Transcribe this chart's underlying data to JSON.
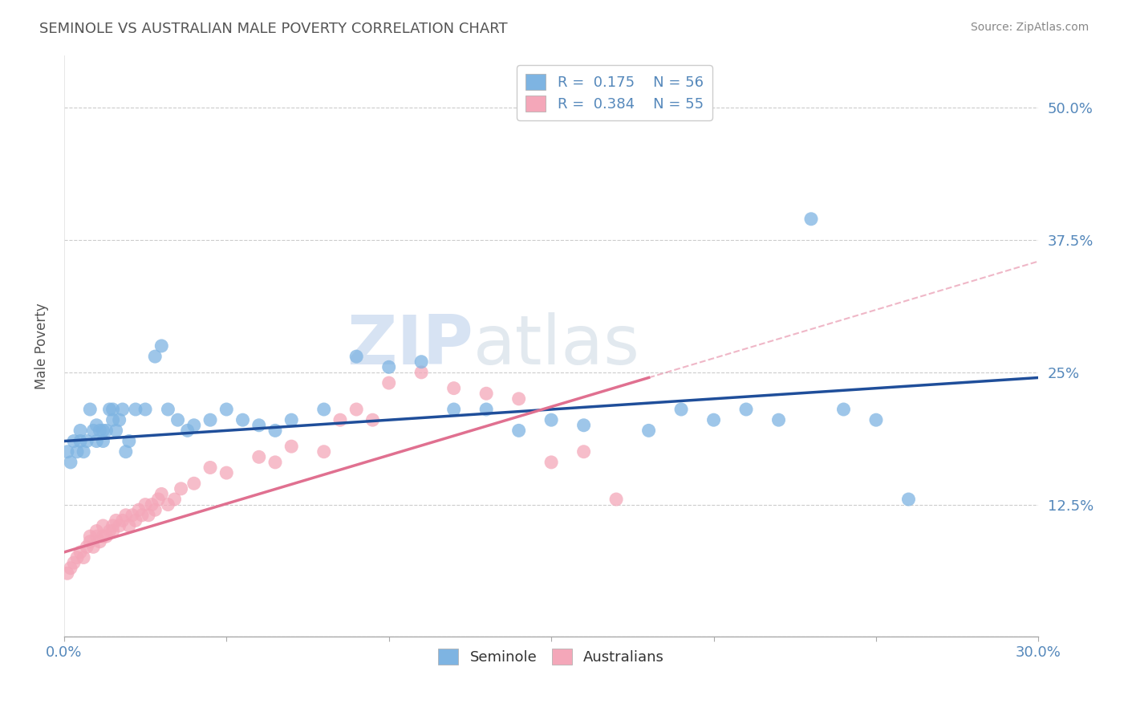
{
  "title": "SEMINOLE VS AUSTRALIAN MALE POVERTY CORRELATION CHART",
  "source": "Source: ZipAtlas.com",
  "ylabel": "Male Poverty",
  "xlim": [
    0.0,
    0.3
  ],
  "ylim": [
    0.0,
    0.55
  ],
  "yticks": [
    0.0,
    0.125,
    0.25,
    0.375,
    0.5
  ],
  "ytick_labels_right": [
    "",
    "12.5%",
    "25%",
    "37.5%",
    "50.0%"
  ],
  "xticks": [
    0.0,
    0.05,
    0.1,
    0.15,
    0.2,
    0.25,
    0.3
  ],
  "xtick_labels": [
    "0.0%",
    "",
    "",
    "",
    "",
    "",
    "30.0%"
  ],
  "seminole_color": "#7EB4E2",
  "australian_color": "#F4A7B9",
  "trend_blue": "#1F4E9A",
  "trend_pink": "#E07090",
  "watermark_zip": "ZIP",
  "watermark_atlas": "atlas",
  "background_color": "#FFFFFF",
  "grid_color": "#CCCCCC",
  "title_color": "#555555",
  "axis_label_color": "#555555",
  "tick_color": "#5588BB",
  "seminole_x": [
    0.001,
    0.002,
    0.003,
    0.004,
    0.005,
    0.005,
    0.006,
    0.007,
    0.008,
    0.009,
    0.01,
    0.01,
    0.011,
    0.012,
    0.012,
    0.013,
    0.014,
    0.015,
    0.015,
    0.016,
    0.017,
    0.018,
    0.019,
    0.02,
    0.022,
    0.025,
    0.028,
    0.03,
    0.032,
    0.035,
    0.038,
    0.04,
    0.045,
    0.05,
    0.055,
    0.06,
    0.065,
    0.07,
    0.08,
    0.09,
    0.1,
    0.11,
    0.12,
    0.13,
    0.14,
    0.15,
    0.16,
    0.18,
    0.19,
    0.2,
    0.21,
    0.22,
    0.23,
    0.24,
    0.25,
    0.26
  ],
  "seminole_y": [
    0.175,
    0.165,
    0.185,
    0.175,
    0.185,
    0.195,
    0.175,
    0.185,
    0.215,
    0.195,
    0.2,
    0.185,
    0.195,
    0.185,
    0.195,
    0.195,
    0.215,
    0.215,
    0.205,
    0.195,
    0.205,
    0.215,
    0.175,
    0.185,
    0.215,
    0.215,
    0.265,
    0.275,
    0.215,
    0.205,
    0.195,
    0.2,
    0.205,
    0.215,
    0.205,
    0.2,
    0.195,
    0.205,
    0.215,
    0.265,
    0.255,
    0.26,
    0.215,
    0.215,
    0.195,
    0.205,
    0.2,
    0.195,
    0.215,
    0.205,
    0.215,
    0.205,
    0.395,
    0.215,
    0.205,
    0.13
  ],
  "australian_x": [
    0.001,
    0.002,
    0.003,
    0.004,
    0.005,
    0.006,
    0.007,
    0.008,
    0.008,
    0.009,
    0.01,
    0.01,
    0.011,
    0.012,
    0.012,
    0.013,
    0.014,
    0.015,
    0.015,
    0.016,
    0.017,
    0.018,
    0.019,
    0.02,
    0.021,
    0.022,
    0.023,
    0.024,
    0.025,
    0.026,
    0.027,
    0.028,
    0.029,
    0.03,
    0.032,
    0.034,
    0.036,
    0.04,
    0.045,
    0.05,
    0.06,
    0.065,
    0.07,
    0.08,
    0.085,
    0.09,
    0.095,
    0.1,
    0.11,
    0.12,
    0.13,
    0.14,
    0.15,
    0.16,
    0.17
  ],
  "australian_y": [
    0.06,
    0.065,
    0.07,
    0.075,
    0.08,
    0.075,
    0.085,
    0.09,
    0.095,
    0.085,
    0.095,
    0.1,
    0.09,
    0.095,
    0.105,
    0.095,
    0.1,
    0.105,
    0.1,
    0.11,
    0.105,
    0.11,
    0.115,
    0.105,
    0.115,
    0.11,
    0.12,
    0.115,
    0.125,
    0.115,
    0.125,
    0.12,
    0.13,
    0.135,
    0.125,
    0.13,
    0.14,
    0.145,
    0.16,
    0.155,
    0.17,
    0.165,
    0.18,
    0.175,
    0.205,
    0.215,
    0.205,
    0.24,
    0.25,
    0.235,
    0.23,
    0.225,
    0.165,
    0.175,
    0.13
  ]
}
